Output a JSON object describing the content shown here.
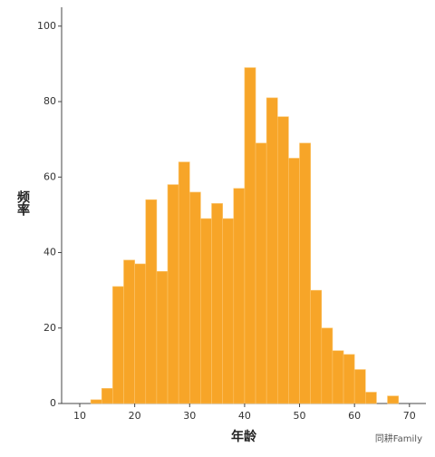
{
  "chart_data": {
    "type": "histogram",
    "x_label": "年龄",
    "y_label": "频率",
    "bins": [
      12,
      14,
      16,
      18,
      20,
      22,
      24,
      26,
      28,
      30,
      32,
      34,
      36,
      38,
      40,
      42,
      44,
      46,
      48,
      50,
      52,
      54,
      56,
      58,
      60,
      62,
      64,
      66,
      68
    ],
    "values": [
      1,
      4,
      31,
      38,
      37,
      54,
      35,
      58,
      64,
      56,
      49,
      53,
      49,
      57,
      89,
      69,
      81,
      76,
      65,
      69,
      30,
      20,
      14,
      13,
      9,
      3,
      0,
      2
    ],
    "color": "#f7a528",
    "xlim": [
      6.7,
      73
    ],
    "ylim": [
      0,
      105
    ],
    "xticks": [
      10,
      20,
      30,
      40,
      50,
      60,
      70
    ],
    "yticks": [
      0,
      20,
      40,
      60,
      80,
      100
    ],
    "watermark": "同耕Family"
  }
}
